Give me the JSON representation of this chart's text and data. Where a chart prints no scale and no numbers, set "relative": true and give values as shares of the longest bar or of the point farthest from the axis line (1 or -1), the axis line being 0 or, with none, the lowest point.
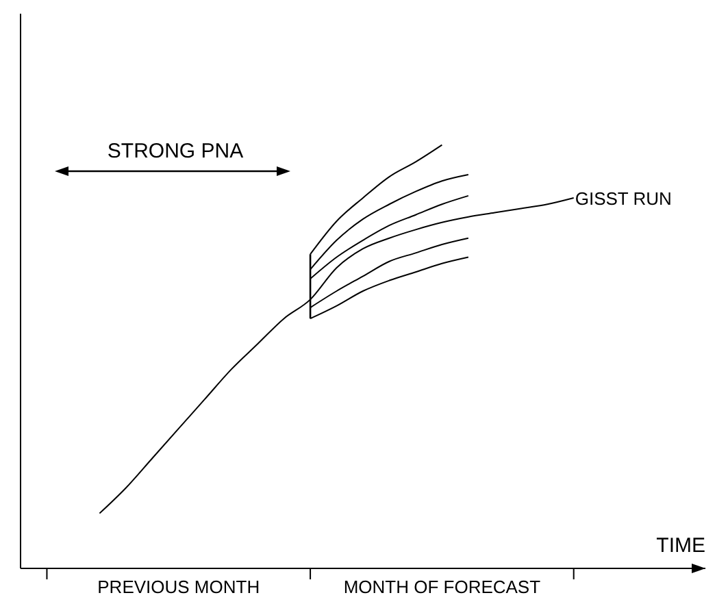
{
  "chart_data": {
    "type": "line",
    "relative": true,
    "xlabel": "TIME",
    "annotations": [
      "STRONG PNA"
    ],
    "categories": [
      null,
      null,
      null,
      null,
      null,
      null,
      "PREVIOUS MONTH",
      null,
      null,
      null,
      null,
      null,
      null,
      null,
      null,
      null,
      "MONTH OF FORECAST",
      null,
      null,
      null,
      null,
      null,
      null,
      null,
      null,
      null,
      null
    ],
    "legend": false,
    "grid": false,
    "marker": "none",
    "line_style": "solid",
    "series": [
      {
        "name": "GISST RUN",
        "color": "#000000",
        "values": [
          null,
          null,
          null,
          0.13,
          0.19,
          0.26,
          0.33,
          0.4,
          0.47,
          0.53,
          0.59,
          0.635,
          0.71,
          0.755,
          0.78,
          0.8,
          0.817,
          0.83,
          0.84,
          0.85,
          0.86,
          0.875,
          null,
          null,
          null,
          null,
          null
        ]
      },
      {
        "color": "#000000",
        "values": [
          null,
          null,
          null,
          null,
          null,
          null,
          null,
          null,
          null,
          null,
          null,
          0.742,
          0.82,
          0.875,
          0.925,
          0.96,
          1.0,
          null,
          null,
          null,
          null,
          null,
          null,
          null,
          null,
          null,
          null
        ]
      },
      {
        "color": "#000000",
        "values": [
          null,
          null,
          null,
          null,
          null,
          null,
          null,
          null,
          null,
          null,
          null,
          0.706,
          0.775,
          0.825,
          0.86,
          0.89,
          0.915,
          0.93,
          null,
          null,
          null,
          null,
          null,
          null,
          null,
          null,
          null
        ]
      },
      {
        "color": "#000000",
        "values": [
          null,
          null,
          null,
          null,
          null,
          null,
          null,
          null,
          null,
          null,
          null,
          0.684,
          0.735,
          0.775,
          0.81,
          0.835,
          0.86,
          0.88,
          null,
          null,
          null,
          null,
          null,
          null,
          null,
          null,
          null
        ]
      },
      {
        "color": "#000000",
        "values": [
          null,
          null,
          null,
          null,
          null,
          null,
          null,
          null,
          null,
          null,
          null,
          0.616,
          0.655,
          0.69,
          0.725,
          0.745,
          0.765,
          0.78,
          null,
          null,
          null,
          null,
          null,
          null,
          null,
          null,
          null
        ]
      },
      {
        "color": "#000000",
        "values": [
          null,
          null,
          null,
          null,
          null,
          null,
          null,
          null,
          null,
          null,
          null,
          0.59,
          0.62,
          0.655,
          0.68,
          0.7,
          0.72,
          0.735,
          null,
          null,
          null,
          null,
          null,
          null,
          null,
          null,
          null
        ]
      }
    ]
  }
}
